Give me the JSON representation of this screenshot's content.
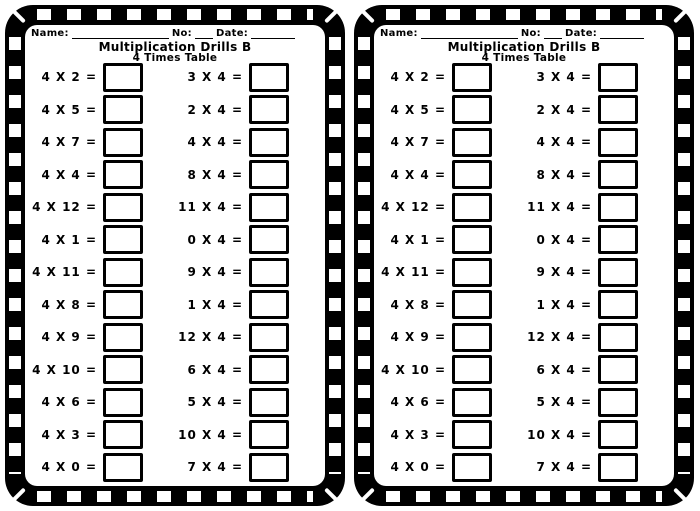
{
  "colors": {
    "ink": "#000000",
    "paper": "#ffffff"
  },
  "worksheet": {
    "header": {
      "name_label": "Name:",
      "no_label": "No:",
      "date_label": "Date:"
    },
    "title": "Multiplication Drills B",
    "subtitle": "4 Times Table",
    "rows": [
      {
        "left": "4 X 2 =",
        "right": "3 X 4 ="
      },
      {
        "left": "4 X 5 =",
        "right": "2 X 4 ="
      },
      {
        "left": "4 X 7 =",
        "right": "4 X 4 ="
      },
      {
        "left": "4 X 4 =",
        "right": "8 X 4 ="
      },
      {
        "left": "4 X 12 =",
        "right": "11 X 4 ="
      },
      {
        "left": "4 X 1 =",
        "right": "0 X 4 ="
      },
      {
        "left": "4 X 11 =",
        "right": "9 X 4 ="
      },
      {
        "left": "4 X 8 =",
        "right": "1 X 4 ="
      },
      {
        "left": "4 X 9 =",
        "right": "12 X 4 ="
      },
      {
        "left": "4 X 10 =",
        "right": "6 X 4 ="
      },
      {
        "left": "4 X 6 =",
        "right": "5 X 4 ="
      },
      {
        "left": "4 X 3 =",
        "right": "10 X 4 ="
      },
      {
        "left": "4 X 0 =",
        "right": "7 X 4 ="
      }
    ]
  }
}
